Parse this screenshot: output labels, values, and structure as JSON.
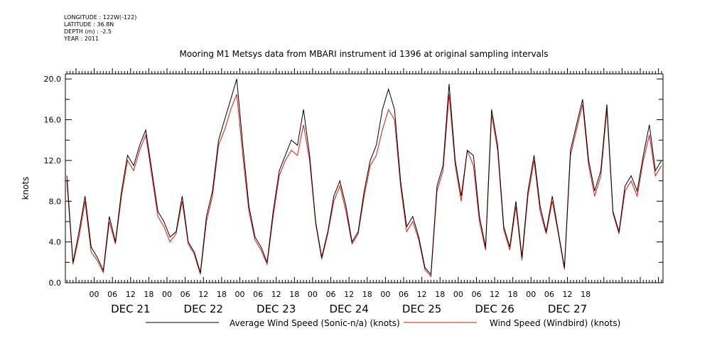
{
  "meta": {
    "longitude": "LONGITUDE : 122W(-122)",
    "latitude": "LATITUDE : 36.8N",
    "depth": "DEPTH (m) : -2.5",
    "year": "YEAR : 2011"
  },
  "chart_data": {
    "type": "line",
    "title": "Mooring M1 Metsys data from MBARI instrument id 1396 at original sampling intervals",
    "xlabel": "",
    "ylabel": "knots",
    "ylim": [
      0,
      20.5
    ],
    "y_ticks": [
      "0.0",
      "4.0",
      "8.0",
      "12.0",
      "16.0",
      "20.0"
    ],
    "x_hour_ticks": [
      "00",
      "06",
      "12",
      "18",
      "00",
      "06",
      "12",
      "18",
      "00",
      "06",
      "12",
      "18",
      "00",
      "06",
      "12",
      "18",
      "00",
      "06",
      "12",
      "18",
      "00",
      "06",
      "12",
      "18",
      "00",
      "06",
      "12",
      "18"
    ],
    "x_day_labels": [
      "DEC 21",
      "DEC 22",
      "DEC 23",
      "DEC 24",
      "DEC 25",
      "DEC 26",
      "DEC 27"
    ],
    "x_range_hours": [
      -9.5,
      187.5
    ],
    "colors": {
      "sonic": "#000000",
      "windbird": "#e8120c"
    },
    "series": [
      {
        "name": "Average Wind Speed (Sonic-n/a) (knots)",
        "x": [
          -9,
          -7,
          -5,
          -3,
          -1,
          1,
          3,
          5,
          7,
          9,
          11,
          13,
          15,
          17,
          19,
          21,
          23,
          25,
          27,
          29,
          31,
          33,
          35,
          37,
          39,
          41,
          43,
          45,
          47,
          49,
          51,
          53,
          55,
          57,
          59,
          61,
          63,
          65,
          67,
          69,
          71,
          73,
          75,
          77,
          79,
          81,
          83,
          85,
          87,
          89,
          91,
          93,
          95,
          97,
          99,
          101,
          103,
          105,
          107,
          109,
          111,
          113,
          115,
          117,
          119,
          121,
          123,
          125,
          127,
          129,
          131,
          133,
          135,
          137,
          139,
          141,
          143,
          145,
          147,
          149,
          151,
          153,
          155,
          157,
          159,
          161,
          163,
          165,
          167,
          169,
          171,
          173,
          175,
          177,
          179,
          181,
          183,
          185,
          187
        ],
        "values": [
          10.5,
          2.0,
          5.0,
          8.5,
          3.5,
          2.5,
          1.2,
          6.5,
          4.0,
          9.0,
          12.5,
          11.5,
          13.5,
          15.0,
          11.0,
          7.0,
          6.0,
          4.5,
          5.0,
          8.5,
          4.0,
          3.0,
          1.0,
          6.5,
          9.0,
          14.0,
          16.0,
          18.0,
          20.0,
          13.5,
          7.5,
          4.5,
          3.5,
          2.0,
          7.0,
          11.0,
          12.5,
          14.0,
          13.5,
          17.0,
          12.5,
          6.0,
          2.5,
          5.0,
          8.5,
          10.0,
          7.5,
          4.0,
          5.0,
          9.0,
          12.0,
          13.5,
          17.0,
          19.0,
          17.0,
          10.0,
          5.5,
          6.5,
          4.5,
          1.5,
          0.8,
          9.5,
          11.5,
          19.5,
          12.0,
          8.5,
          13.0,
          12.5,
          6.5,
          3.5,
          17.0,
          13.5,
          5.5,
          3.5,
          8.0,
          2.5,
          9.0,
          12.5,
          7.5,
          5.0,
          8.5,
          5.0,
          1.5,
          13.0,
          15.5,
          18.0,
          12.0,
          9.0,
          11.0,
          17.5,
          7.0,
          5.0,
          9.5,
          10.5,
          9.0,
          12.5,
          15.5,
          11.0,
          12.0
        ]
      },
      {
        "name": "Wind Speed (Windbird) (knots)",
        "x": [
          -9,
          -7,
          -5,
          -3,
          -1,
          1,
          3,
          5,
          7,
          9,
          11,
          13,
          15,
          17,
          19,
          21,
          23,
          25,
          27,
          29,
          31,
          33,
          35,
          37,
          39,
          41,
          43,
          45,
          47,
          49,
          51,
          53,
          55,
          57,
          59,
          61,
          63,
          65,
          67,
          69,
          71,
          73,
          75,
          77,
          79,
          81,
          83,
          85,
          87,
          89,
          91,
          93,
          95,
          97,
          99,
          101,
          103,
          105,
          107,
          109,
          111,
          113,
          115,
          117,
          119,
          121,
          123,
          125,
          127,
          129,
          131,
          133,
          135,
          137,
          139,
          141,
          143,
          145,
          147,
          149,
          151,
          153,
          155,
          157,
          159,
          161,
          163,
          165,
          167,
          169,
          171,
          173,
          175,
          177,
          179,
          181,
          183,
          185,
          187
        ],
        "values": [
          10.0,
          1.8,
          4.5,
          8.0,
          3.0,
          2.2,
          1.0,
          6.0,
          3.8,
          8.5,
          12.0,
          11.0,
          13.0,
          14.5,
          10.5,
          6.5,
          5.5,
          4.0,
          4.8,
          8.0,
          3.8,
          2.8,
          0.8,
          6.0,
          8.5,
          13.5,
          15.0,
          17.0,
          18.5,
          12.5,
          7.0,
          4.2,
          3.2,
          1.8,
          6.5,
          10.5,
          12.0,
          13.0,
          12.5,
          15.5,
          12.0,
          5.8,
          2.3,
          4.8,
          8.0,
          9.5,
          7.0,
          3.8,
          4.8,
          8.5,
          11.5,
          12.5,
          15.0,
          17.0,
          16.0,
          9.5,
          5.0,
          6.0,
          4.2,
          1.3,
          0.6,
          9.0,
          11.0,
          18.5,
          11.5,
          8.0,
          13.0,
          11.5,
          6.0,
          3.2,
          16.5,
          13.0,
          5.2,
          3.2,
          7.5,
          2.2,
          8.5,
          12.0,
          7.0,
          4.8,
          8.0,
          4.8,
          1.3,
          12.5,
          15.0,
          17.5,
          11.5,
          8.5,
          10.5,
          17.0,
          6.8,
          4.8,
          9.0,
          10.0,
          8.5,
          12.0,
          14.5,
          10.5,
          11.5
        ]
      }
    ],
    "legend": "bottom"
  }
}
